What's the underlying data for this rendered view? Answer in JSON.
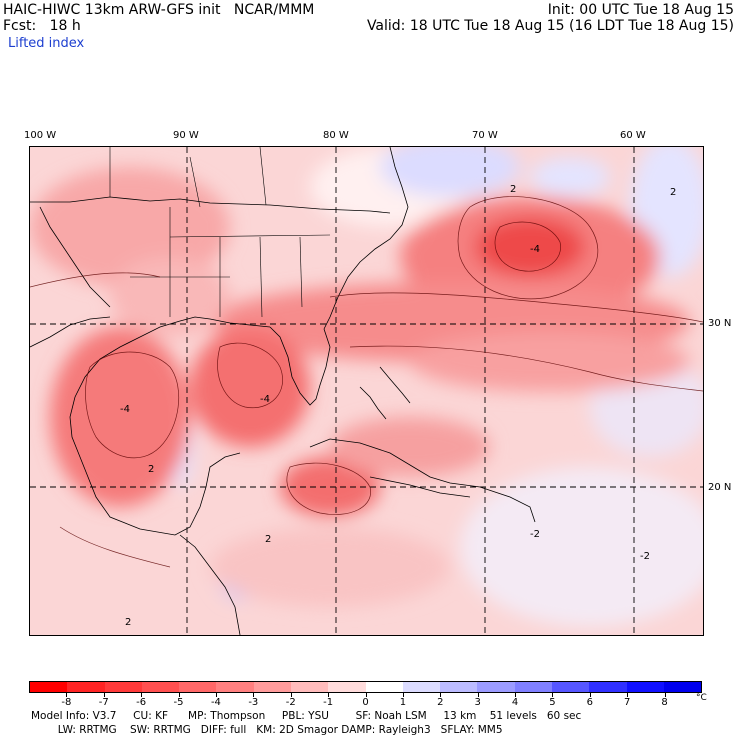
{
  "header": {
    "line1_left": "HAIC-HIWC 13km ARW-GFS init   NCAR/MMM",
    "line1_right": "Init: 00 UTC Tue 18 Aug 15",
    "line2_left": "Fcst:   18 h",
    "line2_right": "Valid: 18 UTC Tue 18 Aug 15 (16 LDT Tue 18 Aug 15)",
    "field": "Lifted index"
  },
  "longitude_labels": [
    "100 W",
    "90 W",
    "80 W",
    "70 W",
    "60 W"
  ],
  "latitude_labels": [
    "30 N",
    "20 N"
  ],
  "contour_labels": [
    "2",
    "2",
    "2",
    "-2",
    "-2",
    "-4",
    "-4",
    "-4",
    "2",
    "2"
  ],
  "colorbar": {
    "labels": [
      "-8",
      "-7",
      "-6",
      "-5",
      "-4",
      "-3",
      "-2",
      "-1",
      "0",
      "1",
      "2",
      "3",
      "4",
      "5",
      "6",
      "7",
      "8"
    ],
    "unit": "°C",
    "colors": [
      "#ff0000",
      "#ff2424",
      "#ff3a3a",
      "#ff5050",
      "#ff6868",
      "#ff8080",
      "#ff9c9c",
      "#ffbcbc",
      "#ffdcdc",
      "#ffffff",
      "#dcdcff",
      "#bcbcff",
      "#9c9cff",
      "#8080ff",
      "#5656ff",
      "#3030ff",
      "#1010ff",
      "#0000ee"
    ]
  },
  "footer": {
    "line1": "Model Info: V3.7     CU: KF      MP: Thompson     PBL: YSU        SF: Noah LSM     13 km    51 levels   60 sec",
    "line2": "        LW: RRTMG    SW: RRTMG   DIFF: full   KM: 2D Smagor DAMP: Rayleigh3   SFLAY: MM5"
  }
}
